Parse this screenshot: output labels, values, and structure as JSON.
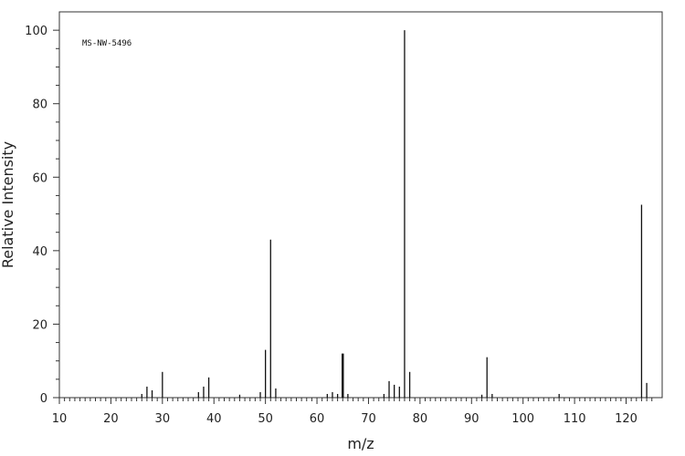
{
  "chart_data": {
    "type": "bar",
    "title": "",
    "annotation": "MS-NW-5496",
    "xlabel": "m/z",
    "ylabel": "Relative Intensity",
    "xlim": [
      10,
      127
    ],
    "ylim": [
      0,
      105
    ],
    "x_ticks": [
      10,
      20,
      30,
      40,
      50,
      60,
      70,
      80,
      90,
      100,
      110,
      120
    ],
    "y_ticks": [
      0,
      20,
      40,
      60,
      80,
      100
    ],
    "grid": false,
    "peaks": [
      {
        "mz": 26,
        "intensity": 1.0
      },
      {
        "mz": 27,
        "intensity": 3.0
      },
      {
        "mz": 28,
        "intensity": 2.0
      },
      {
        "mz": 30,
        "intensity": 7.0
      },
      {
        "mz": 37,
        "intensity": 1.5
      },
      {
        "mz": 38,
        "intensity": 3.0
      },
      {
        "mz": 39,
        "intensity": 5.5
      },
      {
        "mz": 45,
        "intensity": 0.8
      },
      {
        "mz": 49,
        "intensity": 1.5
      },
      {
        "mz": 50,
        "intensity": 13.0
      },
      {
        "mz": 51,
        "intensity": 43.0
      },
      {
        "mz": 52,
        "intensity": 2.5
      },
      {
        "mz": 62,
        "intensity": 1.0
      },
      {
        "mz": 63,
        "intensity": 1.5
      },
      {
        "mz": 64,
        "intensity": 1.0
      },
      {
        "mz": 65,
        "intensity": 12.0
      },
      {
        "mz": 66,
        "intensity": 1.0
      },
      {
        "mz": 73,
        "intensity": 1.0
      },
      {
        "mz": 74,
        "intensity": 4.5
      },
      {
        "mz": 75,
        "intensity": 3.5
      },
      {
        "mz": 76,
        "intensity": 3.0
      },
      {
        "mz": 77,
        "intensity": 100.0
      },
      {
        "mz": 78,
        "intensity": 7.0
      },
      {
        "mz": 92,
        "intensity": 0.8
      },
      {
        "mz": 93,
        "intensity": 11.0
      },
      {
        "mz": 94,
        "intensity": 1.0
      },
      {
        "mz": 107,
        "intensity": 1.0
      },
      {
        "mz": 123,
        "intensity": 52.5
      },
      {
        "mz": 124,
        "intensity": 4.0
      }
    ]
  }
}
